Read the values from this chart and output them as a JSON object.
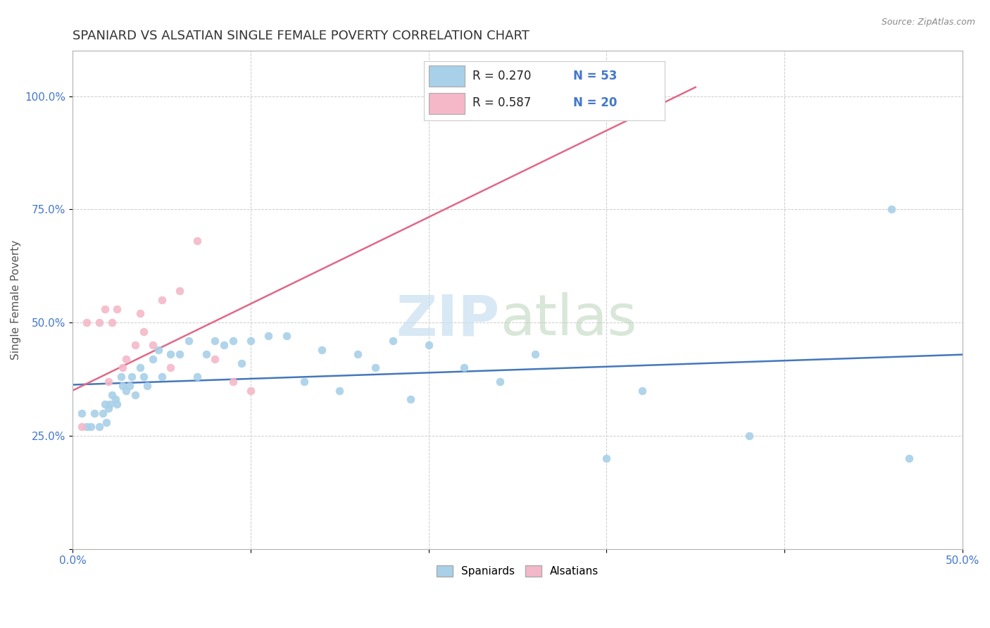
{
  "title": "SPANIARD VS ALSATIAN SINGLE FEMALE POVERTY CORRELATION CHART",
  "source_text": "Source: ZipAtlas.com",
  "ylabel": "Single Female Poverty",
  "xlim": [
    0.0,
    0.5
  ],
  "ylim": [
    0.0,
    1.1
  ],
  "xticks": [
    0.0,
    0.1,
    0.2,
    0.3,
    0.4,
    0.5
  ],
  "xtick_labels": [
    "0.0%",
    "",
    "",
    "",
    "",
    "50.0%"
  ],
  "yticks": [
    0.0,
    0.25,
    0.5,
    0.75,
    1.0
  ],
  "ytick_labels": [
    "",
    "25.0%",
    "50.0%",
    "75.0%",
    "100.0%"
  ],
  "r_spaniard": 0.27,
  "n_spaniard": 53,
  "r_alsatian": 0.587,
  "n_alsatian": 20,
  "spaniard_color": "#a8d0e8",
  "alsatian_color": "#f4b8c8",
  "spaniard_line_color": "#4477bb",
  "alsatian_line_color": "#e06888",
  "legend_label_spaniard": "Spaniards",
  "legend_label_alsatian": "Alsatians",
  "spaniard_x": [
    0.005,
    0.008,
    0.01,
    0.012,
    0.015,
    0.017,
    0.018,
    0.019,
    0.02,
    0.021,
    0.022,
    0.024,
    0.025,
    0.027,
    0.028,
    0.03,
    0.032,
    0.033,
    0.035,
    0.038,
    0.04,
    0.042,
    0.045,
    0.048,
    0.05,
    0.055,
    0.06,
    0.065,
    0.07,
    0.075,
    0.08,
    0.085,
    0.09,
    0.095,
    0.1,
    0.11,
    0.12,
    0.13,
    0.14,
    0.15,
    0.16,
    0.17,
    0.18,
    0.19,
    0.2,
    0.22,
    0.24,
    0.26,
    0.3,
    0.32,
    0.38,
    0.46,
    0.47
  ],
  "spaniard_y": [
    0.3,
    0.27,
    0.27,
    0.3,
    0.27,
    0.3,
    0.32,
    0.28,
    0.31,
    0.32,
    0.34,
    0.33,
    0.32,
    0.38,
    0.36,
    0.35,
    0.36,
    0.38,
    0.34,
    0.4,
    0.38,
    0.36,
    0.42,
    0.44,
    0.38,
    0.43,
    0.43,
    0.46,
    0.38,
    0.43,
    0.46,
    0.45,
    0.46,
    0.41,
    0.46,
    0.47,
    0.47,
    0.37,
    0.44,
    0.35,
    0.43,
    0.4,
    0.46,
    0.33,
    0.45,
    0.4,
    0.37,
    0.43,
    0.2,
    0.35,
    0.25,
    0.75,
    0.2
  ],
  "alsatian_x": [
    0.005,
    0.008,
    0.015,
    0.018,
    0.02,
    0.022,
    0.025,
    0.028,
    0.03,
    0.035,
    0.038,
    0.04,
    0.045,
    0.05,
    0.055,
    0.06,
    0.07,
    0.08,
    0.09,
    0.1
  ],
  "alsatian_y": [
    0.27,
    0.5,
    0.5,
    0.53,
    0.37,
    0.5,
    0.53,
    0.4,
    0.42,
    0.45,
    0.52,
    0.48,
    0.45,
    0.55,
    0.4,
    0.57,
    0.68,
    0.42,
    0.37,
    0.35
  ],
  "background_color": "#ffffff",
  "grid_color": "#cccccc",
  "title_fontsize": 13,
  "axis_label_fontsize": 11,
  "tick_fontsize": 11,
  "marker_size": 60
}
